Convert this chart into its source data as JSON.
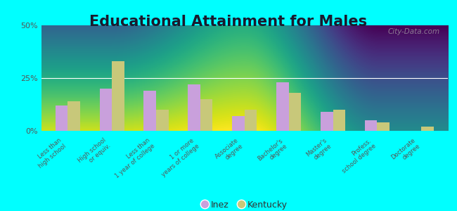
{
  "title": "Educational Attainment for Males",
  "categories": [
    "Less than\nhigh school",
    "High school\nor equiv.",
    "Less than\n1 year of college",
    "1 or more\nyears of college",
    "Associate\ndegree",
    "Bachelor's\ndegree",
    "Master's\ndegree",
    "Profess.\nschool degree",
    "Doctorate\ndegree"
  ],
  "inez_values": [
    12,
    20,
    19,
    22,
    7,
    23,
    9,
    5,
    0
  ],
  "kentucky_values": [
    14,
    33,
    10,
    15,
    10,
    18,
    10,
    4,
    2
  ],
  "inez_color": "#c9a0dc",
  "kentucky_color": "#c8c87a",
  "background_color": "#00ffff",
  "plot_bg_top": "#d0dfc0",
  "plot_bg_bottom": "#eef2d8",
  "yticks": [
    0,
    25,
    50
  ],
  "ylim": [
    0,
    50
  ],
  "title_fontsize": 15,
  "legend_labels": [
    "Inez",
    "Kentucky"
  ],
  "watermark": "City-Data.com"
}
